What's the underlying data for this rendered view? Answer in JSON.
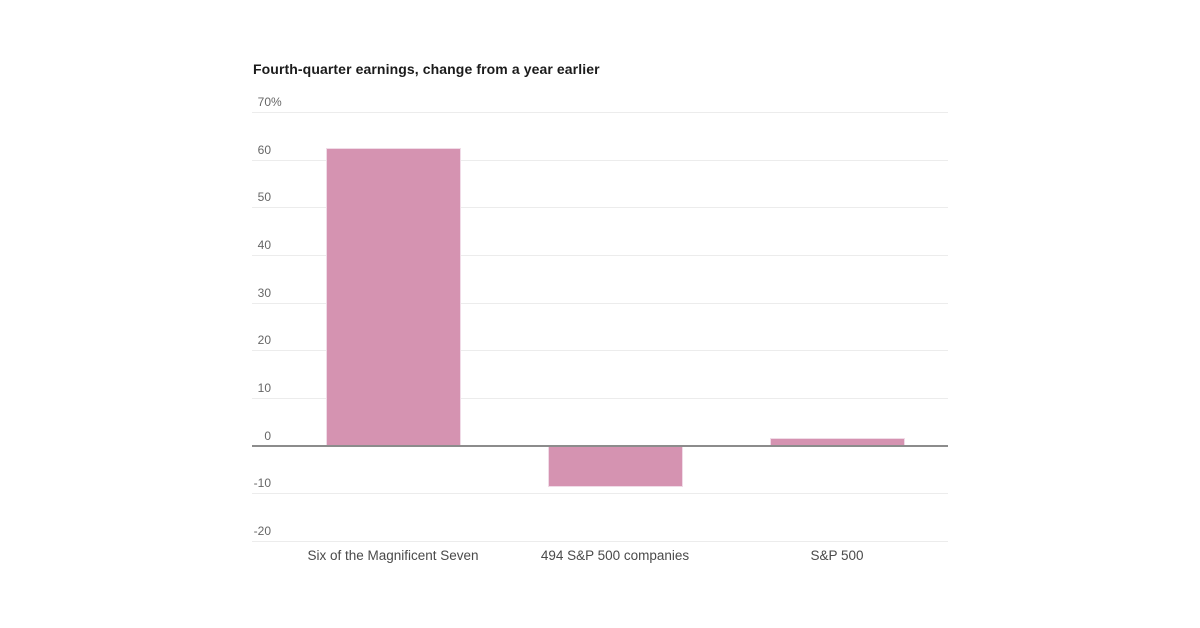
{
  "chart_data": {
    "type": "bar",
    "title": "Fourth-quarter earnings, change from a year earlier",
    "categories": [
      "Six of the Magnificent Seven",
      "494 S&P 500 companies",
      "S&P 500"
    ],
    "values": [
      62.5,
      -8.7,
      1.7
    ],
    "unit": "%",
    "xlabel": "",
    "ylabel": "",
    "ylim": [
      -20,
      70
    ],
    "ytick_values": [
      70,
      60,
      50,
      40,
      30,
      20,
      10,
      0,
      -10,
      -20
    ],
    "ytick_labels": [
      "70%",
      "60",
      "50",
      "40",
      "30",
      "20",
      "10",
      "0",
      "-10",
      "-20"
    ],
    "grid": true,
    "legend_position": "none",
    "colors": {
      "bar_fill": "#d593b1",
      "bar_edge": "#f0dbe7",
      "gridline": "#ececec",
      "zero_line": "#8c8c8c",
      "ytick_label": "#666666",
      "category_label": "#4a4a4a",
      "title": "#1b1b1b",
      "background": "#ffffff"
    }
  }
}
